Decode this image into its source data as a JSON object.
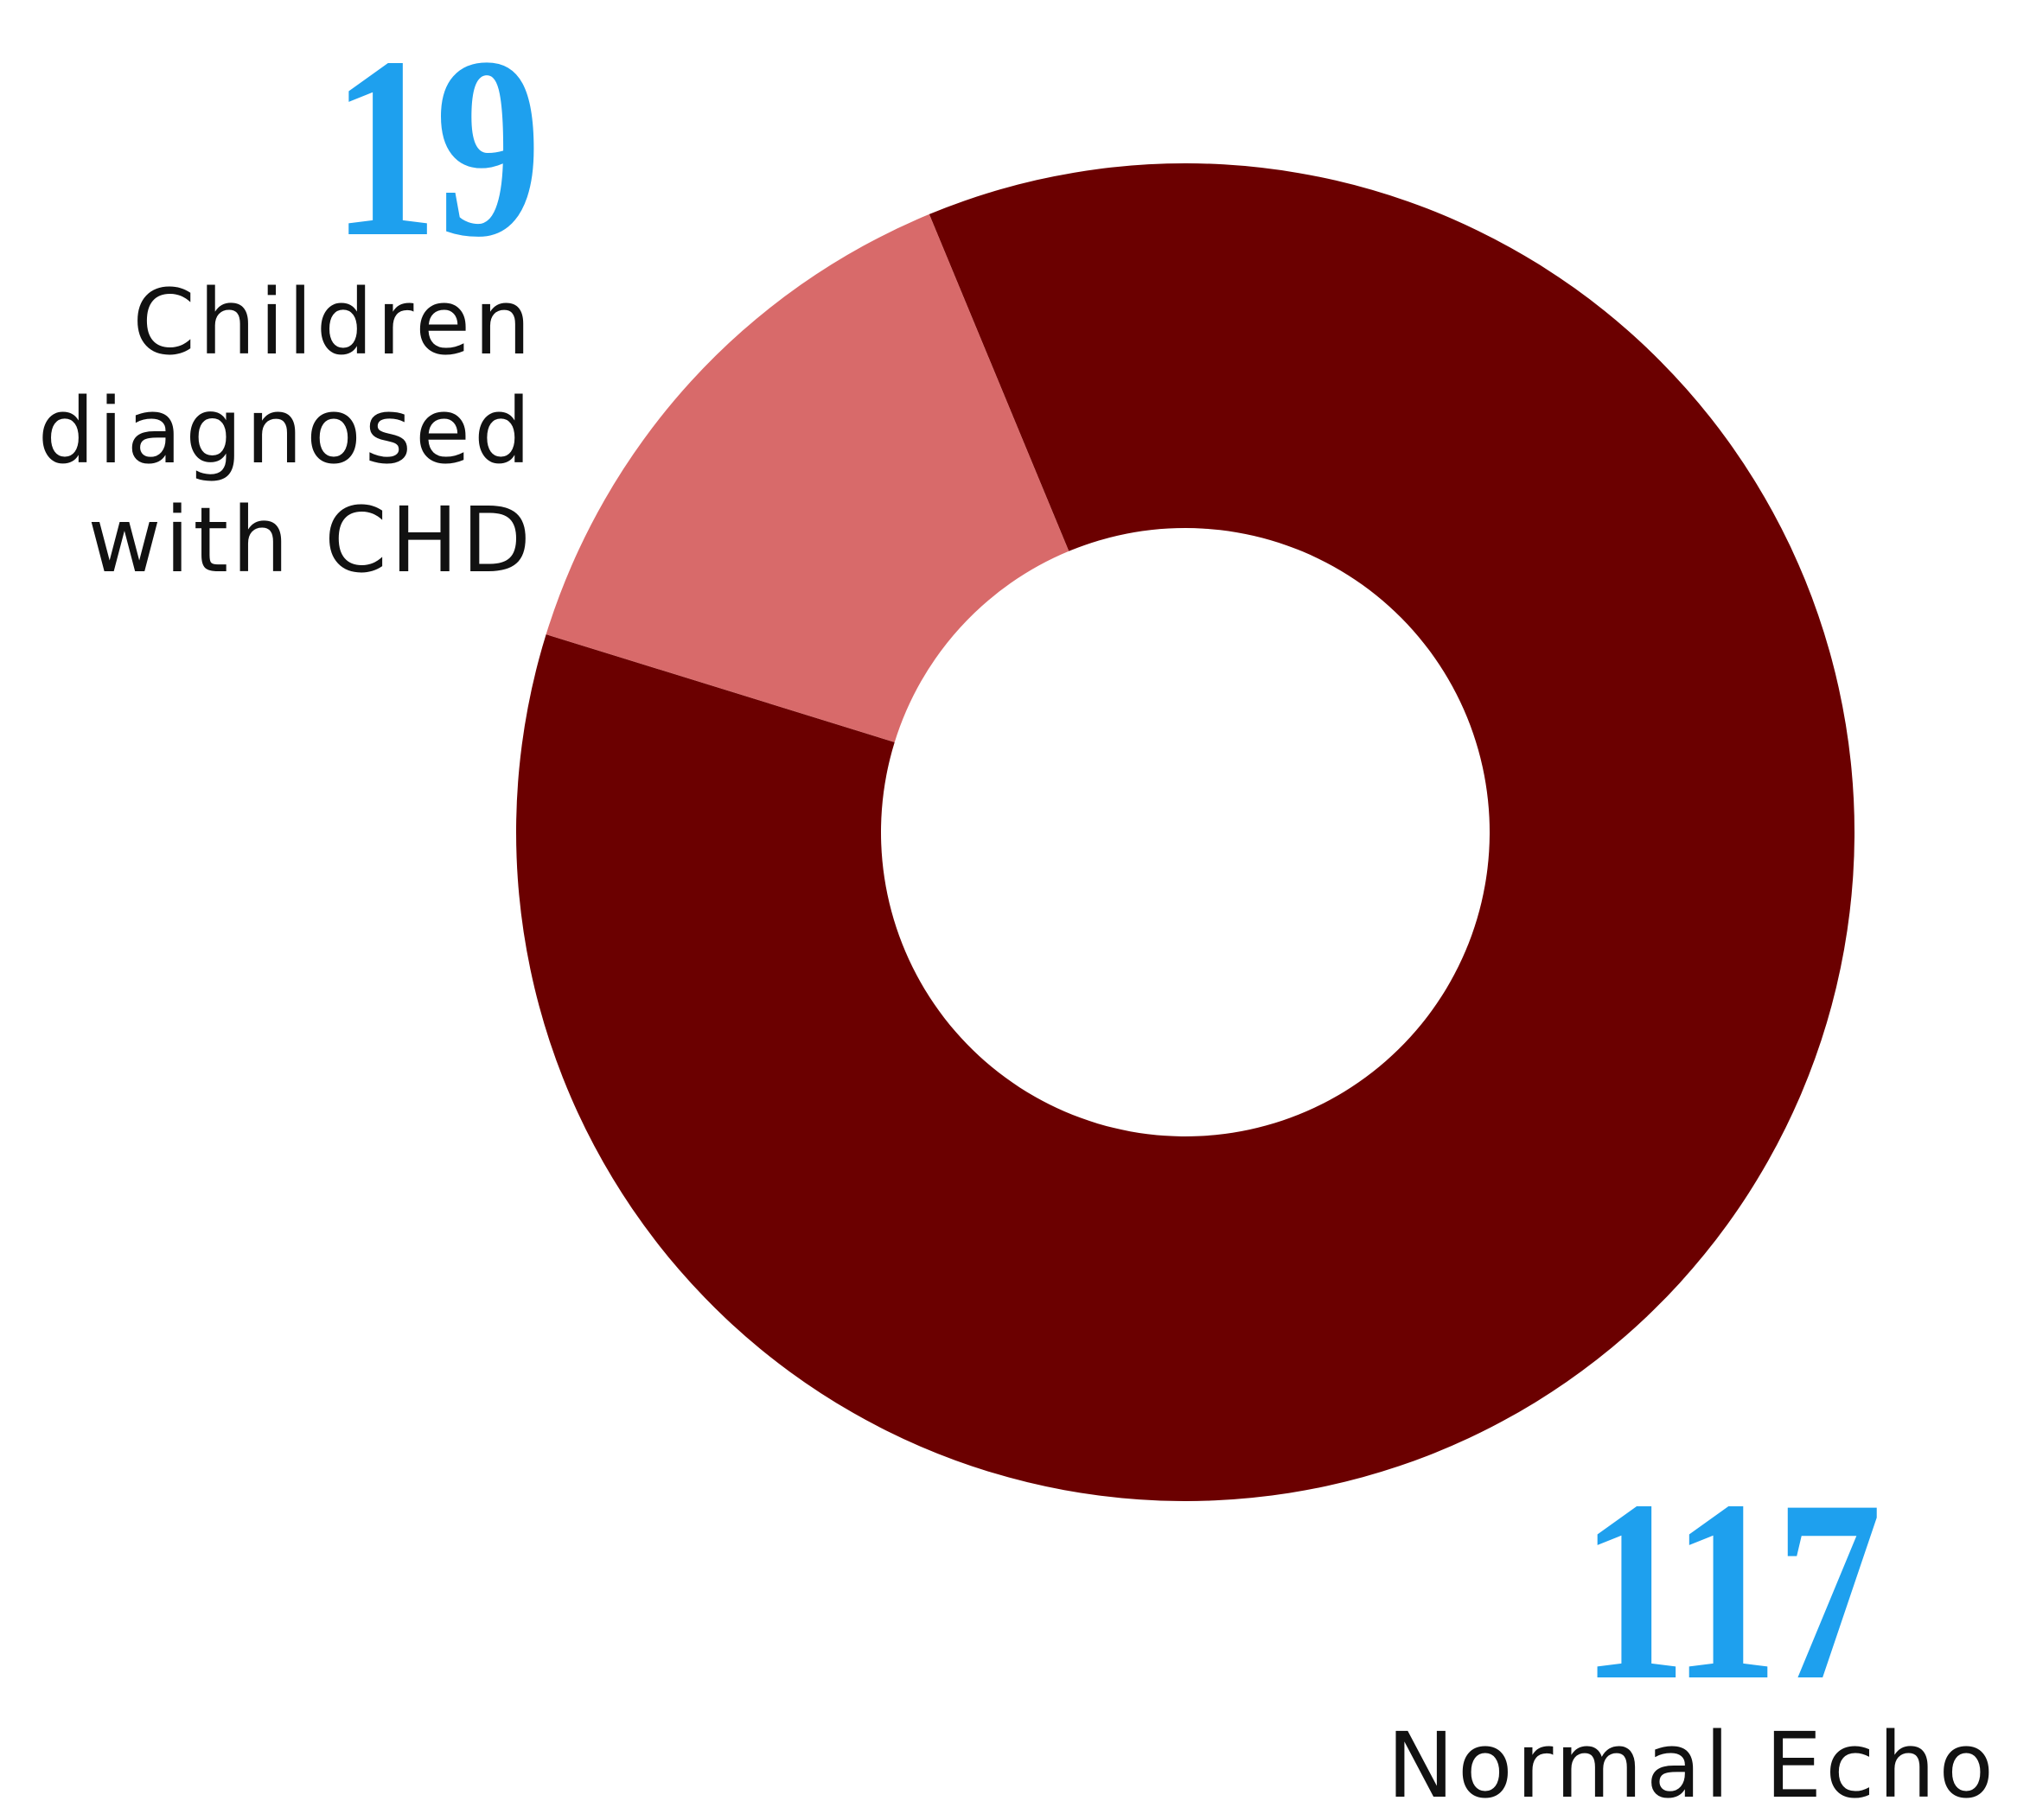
{
  "chart_data": {
    "type": "pie",
    "donut": true,
    "slices": [
      {
        "label_lines": [
          "Children",
          "diagnosed",
          "with CHD"
        ],
        "value": 19,
        "display": "19",
        "color": "#d86a6a"
      },
      {
        "label_lines": [
          "Normal Echo"
        ],
        "value": 117,
        "display": "117",
        "color": "#6b0000"
      }
    ],
    "number_color": "#1ea0ee",
    "label_color": "#111111"
  }
}
